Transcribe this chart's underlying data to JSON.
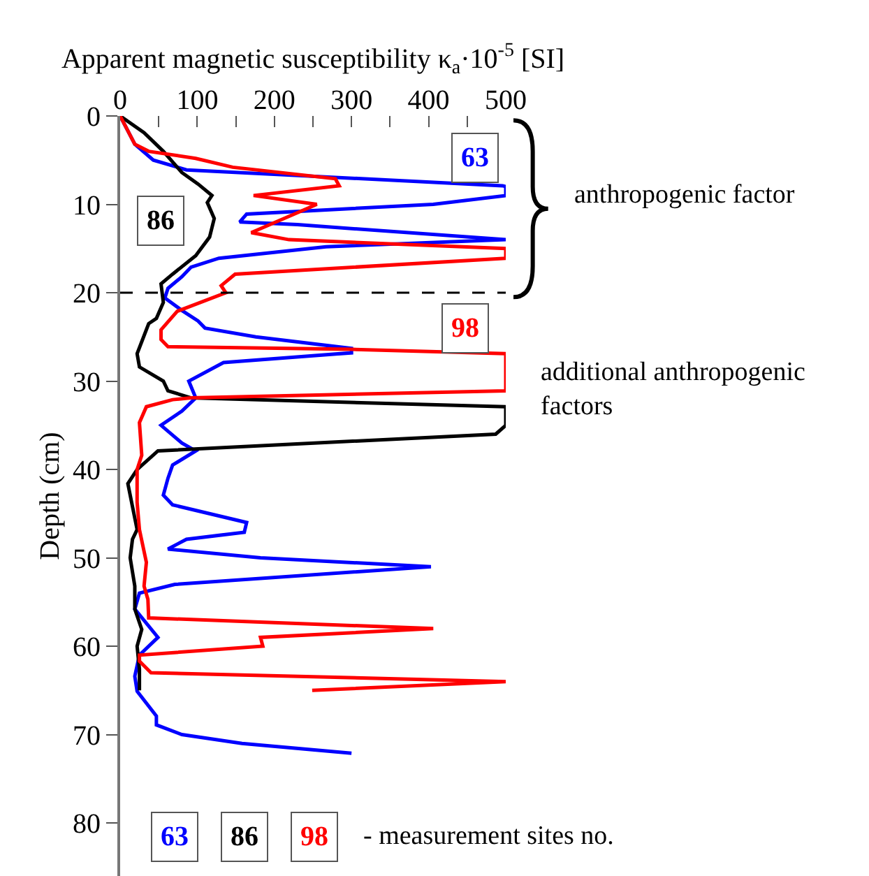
{
  "chart_data": {
    "type": "line",
    "orientation": "horizontal",
    "xlabel": "Apparent magnetic susceptibility κ$_{a}$·10$^{-5}$ [SI]",
    "ylabel": "Depth (cm)",
    "xlim": [
      0,
      500
    ],
    "xticks": [
      0,
      {
        "value": 50,
        "label": null
      },
      100,
      {
        "value": 150,
        "label": null
      },
      200,
      {
        "value": 250,
        "label": null
      },
      300,
      {
        "value": 350,
        "label": null
      },
      400,
      {
        "value": 450,
        "label": null
      },
      500
    ],
    "ylim": [
      86,
      0
    ],
    "yticks": [
      0,
      10,
      20,
      30,
      40,
      50,
      60,
      70,
      80
    ],
    "legend": false,
    "marker": "none",
    "line_style": "solid",
    "series": [
      {
        "name": "63",
        "color": "#0000ff",
        "x": [
          0,
          3.2,
          5,
          6.1,
          7.9,
          8,
          9,
          10,
          11.1,
          12,
          12.3,
          14,
          14.8,
          16.1,
          17.1,
          18.2,
          19.5,
          20.6,
          22,
          23.2,
          24,
          25,
          26.3,
          26.8,
          27.9,
          30,
          31.9,
          33.4,
          35,
          37,
          37.9,
          39.5,
          41,
          42.9,
          44,
          46,
          47.1,
          47.9,
          49,
          50,
          51,
          53,
          54,
          55.8,
          59,
          61,
          63.4,
          65.1,
          67.9,
          68.9,
          70,
          71,
          72.1
        ],
        "values": [
          0,
          19,
          43,
          86,
          496,
          500,
          500,
          406,
          164,
          155,
          230,
          500,
          267,
          128,
          92,
          80,
          62,
          58,
          80,
          101,
          110,
          176,
          300,
          300,
          134,
          89,
          98,
          80,
          53,
          80,
          98,
          68,
          62,
          56,
          68,
          164,
          161,
          86,
          62,
          182,
          403,
          71,
          25,
          19,
          49,
          25,
          19,
          22,
          47,
          47,
          80,
          158,
          300
        ]
      },
      {
        "name": "86",
        "color": "#000000",
        "x": [
          0,
          1.9,
          4,
          6.4,
          7.7,
          9,
          9.8,
          11.6,
          13.7,
          15.8,
          17.9,
          19,
          21.1,
          22.9,
          23.5,
          26.9,
          28.4,
          30,
          31.1,
          31.9,
          32.9,
          35,
          36,
          37.9,
          40,
          41.6,
          44.2,
          46.8,
          47.9,
          50,
          53.2,
          55.8,
          58.1,
          60,
          62.6,
          65
        ],
        "values": [
          0,
          31,
          56,
          80,
          101,
          119,
          113,
          122,
          116,
          98,
          68,
          53,
          56,
          47,
          37,
          22,
          25,
          56,
          62,
          92,
          500,
          500,
          487,
          49,
          22,
          10,
          16,
          22,
          16,
          13,
          19,
          19,
          28,
          22,
          25,
          25
        ]
      },
      {
        "name": "98",
        "color": "#ff0000",
        "x": [
          0,
          3.2,
          4,
          4.8,
          5.8,
          7.1,
          7.9,
          9,
          10,
          13.2,
          14,
          15,
          16.1,
          17.9,
          19.2,
          20,
          22.1,
          24.2,
          25.3,
          26.1,
          26.4,
          26.9,
          31.1,
          31.9,
          32.1,
          32.9,
          34.7,
          38.4,
          40,
          43.7,
          46.8,
          50.5,
          53.2,
          54.7,
          56.8,
          58,
          59,
          60,
          61,
          61.7,
          63,
          64,
          65
        ],
        "values": [
          0,
          19,
          37,
          98,
          146,
          279,
          284,
          173,
          255,
          170,
          219,
          500,
          500,
          149,
          131,
          137,
          74,
          53,
          53,
          62,
          300,
          500,
          500,
          92,
          68,
          34,
          25,
          28,
          22,
          22,
          25,
          34,
          31,
          36,
          37,
          406,
          182,
          185,
          25,
          25,
          40,
          500,
          249
        ]
      }
    ],
    "ref_lines": [
      {
        "axis": "y",
        "value": 20,
        "label": null,
        "color": "#000000",
        "line_style": "dashed"
      }
    ],
    "annotations": [
      "anthropogenic factor",
      "additional anthropogenic factors",
      "- measurement sites no."
    ]
  }
}
